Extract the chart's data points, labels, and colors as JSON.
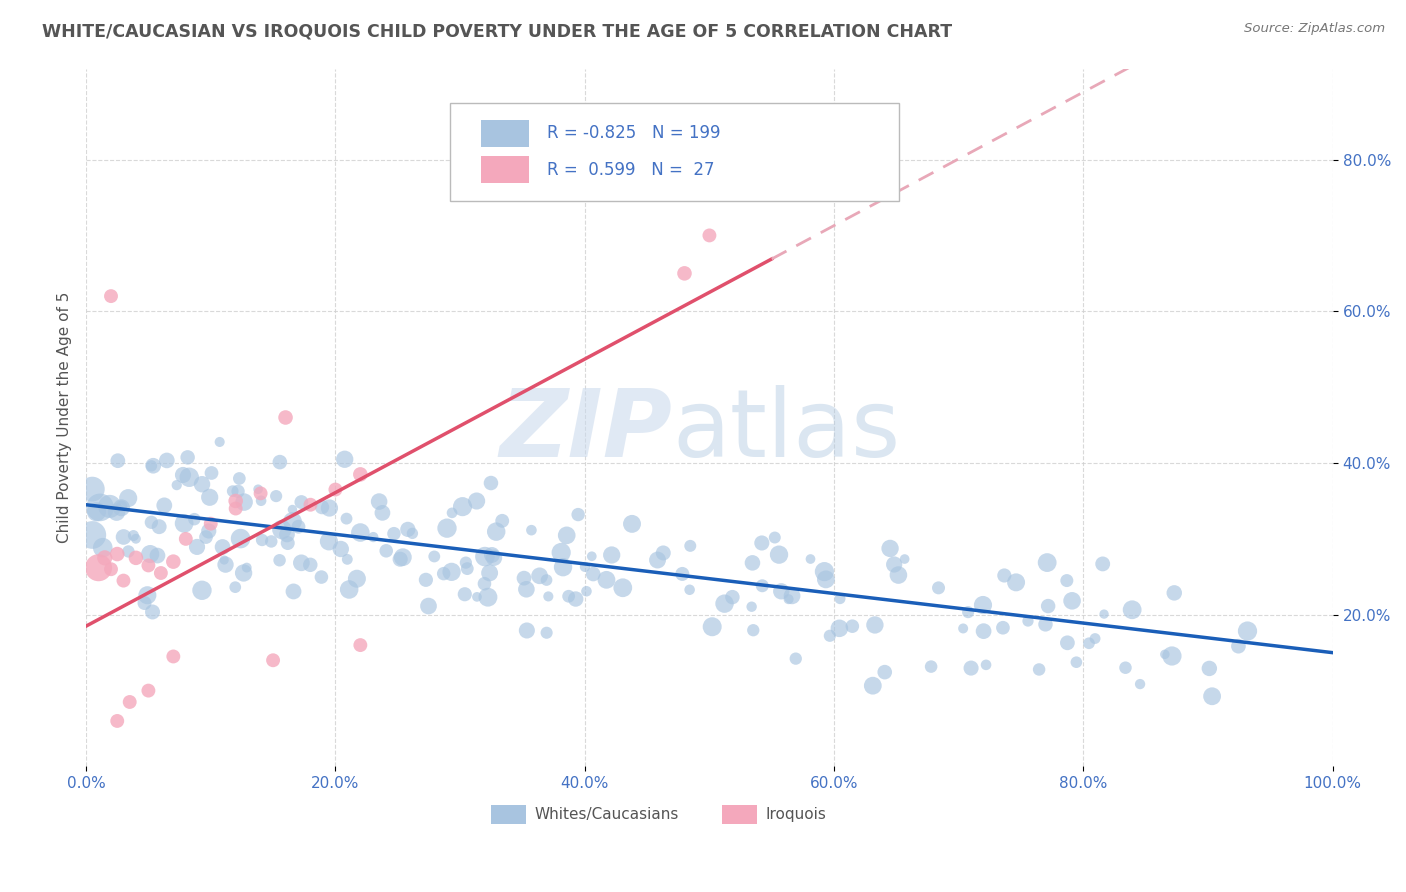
{
  "title": "WHITE/CAUCASIAN VS IROQUOIS CHILD POVERTY UNDER THE AGE OF 5 CORRELATION CHART",
  "source": "Source: ZipAtlas.com",
  "ylabel": "Child Poverty Under the Age of 5",
  "blue_color": "#a8c4e0",
  "pink_color": "#f4a8bc",
  "blue_line_color": "#1a5eb8",
  "pink_line_color": "#e0506c",
  "pink_dash_color": "#e8a8b8",
  "title_color": "#555555",
  "axis_label_color": "#4472c4",
  "background_color": "#ffffff",
  "grid_color": "#d0d0d0",
  "xtick_labels": [
    "0.0%",
    "20.0%",
    "40.0%",
    "60.0%",
    "80.0%",
    "100.0%"
  ],
  "ytick_labels_right": [
    "20.0%",
    "40.0%",
    "60.0%",
    "80.0%"
  ],
  "legend_text_color": "#4472c4",
  "watermark_zip_color": "#c8d8ec",
  "watermark_atlas_color": "#b0c8e0"
}
